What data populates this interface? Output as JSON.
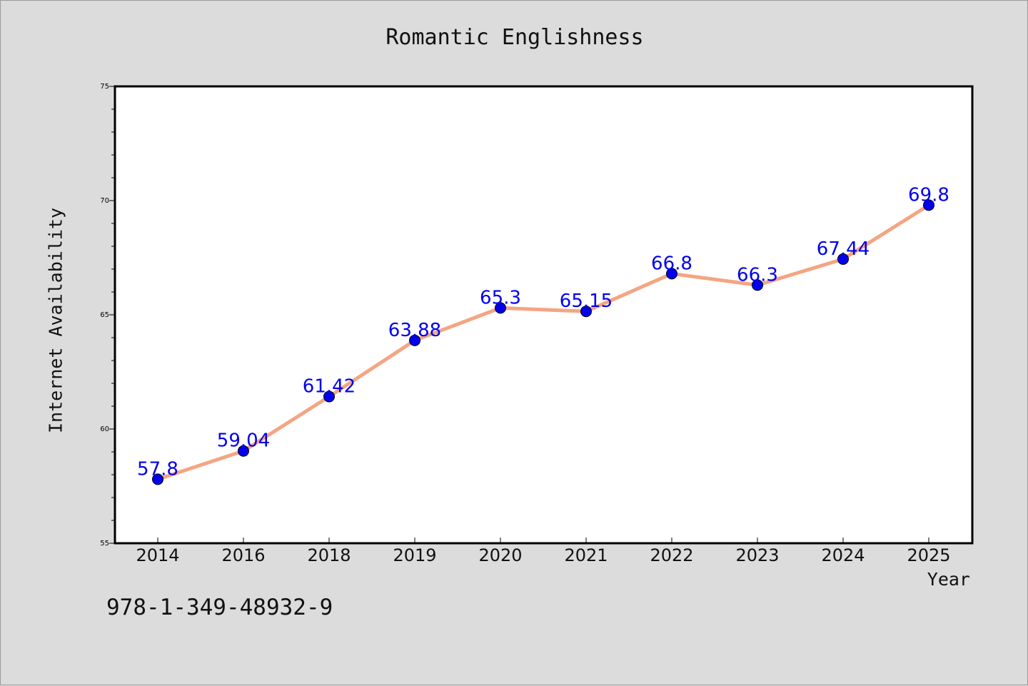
{
  "chart_data": {
    "type": "line",
    "title": "Romantic Englishness",
    "xlabel": "Year",
    "ylabel": "Internet Availability",
    "categories": [
      "2014",
      "2016",
      "2018",
      "2019",
      "2020",
      "2021",
      "2022",
      "2023",
      "2024",
      "2025"
    ],
    "series": [
      {
        "values": [
          57.8,
          59.04,
          61.42,
          63.88,
          65.3,
          65.15,
          66.8,
          66.3,
          67.44,
          69.8
        ],
        "labels": [
          "57.8",
          "59.04",
          "61.42",
          "63.88",
          "65.3",
          "65.15",
          "66.8",
          "66.3",
          "67.44",
          "69.8"
        ],
        "line_color": "#f4a582",
        "marker_color": "#0000ee"
      }
    ],
    "ylim": [
      55,
      75
    ],
    "yticks": [
      "55",
      "60",
      "65",
      "70",
      "75"
    ],
    "grid": false,
    "legend": "none",
    "label_color": "#0000ee"
  },
  "footer": {
    "isbn": "978-1-349-48932-9"
  }
}
